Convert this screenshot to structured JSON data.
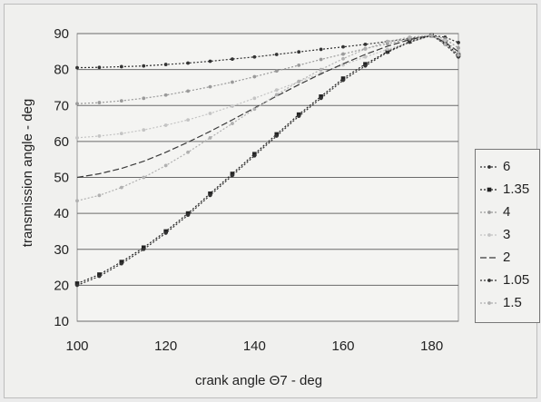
{
  "chart_data": {
    "type": "line",
    "title": "",
    "xlabel": "crank angle Θ7 - deg",
    "ylabel": "transmission angle - deg",
    "xlim": [
      100,
      186
    ],
    "ylim": [
      10,
      90
    ],
    "xticks": [
      100,
      120,
      140,
      160,
      180
    ],
    "yticks": [
      10,
      20,
      30,
      40,
      50,
      60,
      70,
      80,
      90
    ],
    "grid": "horizontal",
    "legend_position": "right",
    "x": [
      100,
      105,
      110,
      115,
      120,
      125,
      130,
      135,
      140,
      145,
      150,
      155,
      160,
      165,
      170,
      175,
      180,
      183,
      186
    ],
    "series": [
      {
        "name": "6",
        "color": "#333333",
        "marker": "dot",
        "values": [
          80.5,
          80.6,
          80.8,
          81.0,
          81.4,
          81.8,
          82.3,
          82.9,
          83.5,
          84.2,
          84.9,
          85.6,
          86.3,
          87.0,
          87.8,
          88.6,
          89.5,
          89.0,
          87.5
        ]
      },
      {
        "name": "1.35",
        "color": "#222222",
        "marker": "square",
        "values": [
          20.5,
          23.0,
          26.5,
          30.5,
          35.0,
          40.0,
          45.5,
          51.0,
          56.5,
          62.0,
          67.5,
          72.5,
          77.5,
          81.5,
          85.0,
          87.8,
          89.5,
          87.5,
          84.0
        ]
      },
      {
        "name": "4",
        "color": "#9a9a9a",
        "marker": "dot",
        "values": [
          70.5,
          70.8,
          71.3,
          72.0,
          72.9,
          74.0,
          75.2,
          76.5,
          78.0,
          79.6,
          81.2,
          82.8,
          84.3,
          85.8,
          87.2,
          88.5,
          89.5,
          88.5,
          86.0
        ]
      },
      {
        "name": "3",
        "color": "#c4c4c4",
        "marker": "dot",
        "values": [
          61.0,
          61.5,
          62.2,
          63.2,
          64.5,
          66.0,
          67.8,
          69.8,
          72.0,
          74.3,
          76.6,
          79.0,
          81.3,
          83.5,
          85.6,
          87.6,
          89.5,
          88.0,
          85.0
        ]
      },
      {
        "name": "2",
        "color": "#3a3a3a",
        "marker": "none",
        "values": [
          50.0,
          51.0,
          52.5,
          54.5,
          57.0,
          59.8,
          62.8,
          66.0,
          69.3,
          72.6,
          75.8,
          78.8,
          81.6,
          84.2,
          86.5,
          88.3,
          89.5,
          87.5,
          85.0
        ]
      },
      {
        "name": "1.05",
        "color": "#333333",
        "marker": "dot",
        "values": [
          20.0,
          22.5,
          26.0,
          30.0,
          34.5,
          39.5,
          45.0,
          50.5,
          56.0,
          61.5,
          67.0,
          72.0,
          77.0,
          81.0,
          84.8,
          87.6,
          89.5,
          87.0,
          83.5
        ]
      },
      {
        "name": "1.5",
        "color": "#b0b0b0",
        "marker": "dot",
        "values": [
          43.5,
          45.0,
          47.2,
          50.0,
          53.3,
          57.0,
          61.0,
          65.0,
          69.0,
          73.0,
          76.7,
          80.0,
          83.0,
          85.7,
          87.8,
          89.0,
          89.5,
          87.0,
          84.0
        ]
      }
    ]
  }
}
